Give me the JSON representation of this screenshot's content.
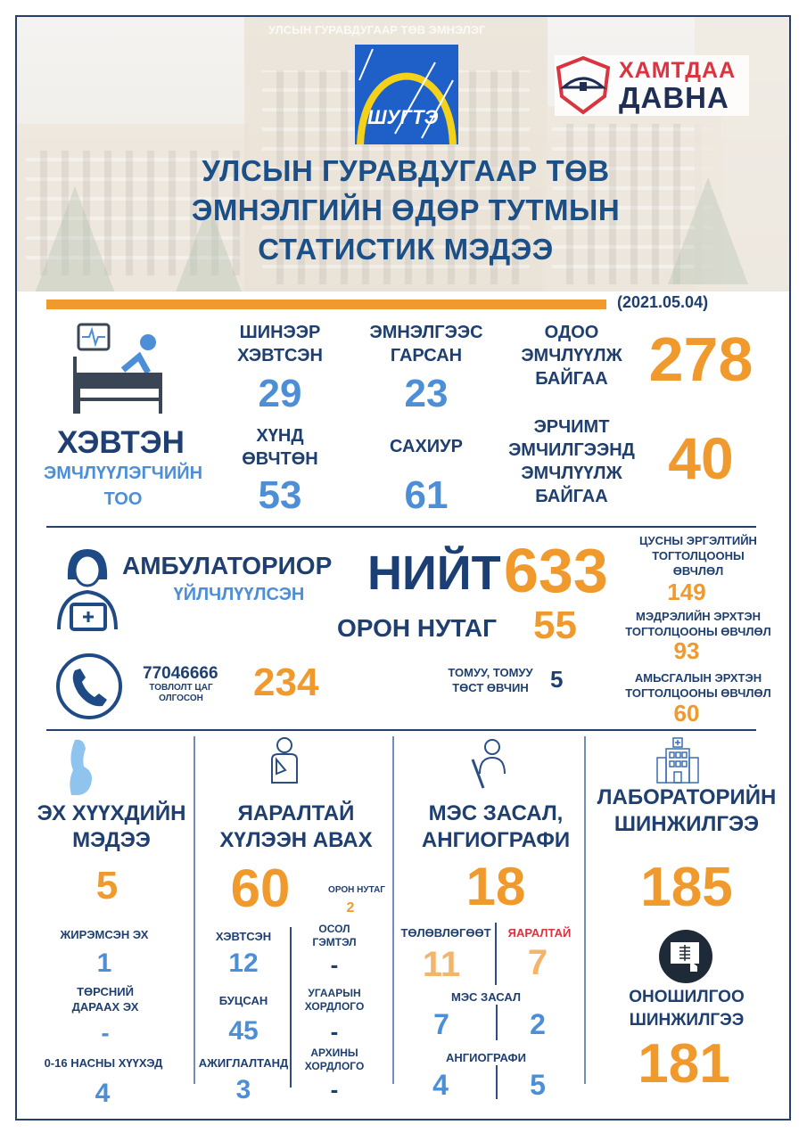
{
  "header": {
    "building_sign": "УЛСЫН ГУРАВДУГААР ТӨВ ЭМНЭЛЭГ",
    "logo_text": "ШУГТЭ",
    "campaign_logo": [
      "ХАМТДАА",
      "ДАВНА"
    ],
    "title_lines": [
      "УЛСЫН ГУРАВДУГААР ТӨВ",
      "ЭМНЭЛГИЙН ӨДӨР ТУТМЫН",
      "СТАТИСТИК МЭДЭЭ"
    ],
    "date": "(2021.05.04)"
  },
  "colors": {
    "navy": "#1e3f6f",
    "blue": "#4d8fd6",
    "orange": "#f09a2e",
    "red": "#d9343f"
  },
  "inpatient": {
    "title": "ХЭВТЭН",
    "subtitle_lines": [
      "ЭМЧЛҮҮЛЭГЧИЙН",
      "ТОО"
    ],
    "stats": [
      {
        "label_lines": [
          "ШИНЭЭР",
          "ХЭВТСЭН"
        ],
        "value": "29"
      },
      {
        "label_lines": [
          "ЭМНЭЛГЭЭС",
          "ГАРСАН"
        ],
        "value": "23"
      },
      {
        "label_lines": [
          "ОДОО",
          "ЭМЧЛҮҮЛЖ",
          "БАЙГАА"
        ],
        "value": "278"
      },
      {
        "label_lines": [
          "ХҮНД",
          "ӨВЧТӨН"
        ],
        "value": "53"
      },
      {
        "label_lines": [
          "САХИУР"
        ],
        "value": "61"
      },
      {
        "label_lines": [
          "ЭРЧИМТ",
          "ЭМЧИЛГЭЭНД",
          "ЭМЧЛҮҮЛЖ",
          "БАЙГАА"
        ],
        "value": "40"
      }
    ]
  },
  "outpatient": {
    "title": "АМБУЛАТОРИОР",
    "subtitle": "ҮЙЛЧЛҮҮЛСЭН",
    "total_label": "НИЙТ",
    "total": "633",
    "rural_label": "ОРОН НУТАГ",
    "rural": "55",
    "hotline": {
      "number": "77046666",
      "label_lines": [
        "ТОВЛОЛТ ЦАГ",
        "ОЛГОСОН"
      ],
      "value": "234"
    },
    "flu": {
      "label_lines": [
        "ТОМУУ, ТОМУУ",
        "ТӨСТ ӨВЧИН"
      ],
      "value": "5"
    },
    "diseases": [
      {
        "label_lines": [
          "ЦУСНЫ ЭРГЭЛТИЙН",
          "ТОГТОЛЦООНЫ",
          "ӨВЧЛӨЛ"
        ],
        "value": "149"
      },
      {
        "label_lines": [
          "МЭДРЭЛИЙН ЭРХТЭН",
          "ТОГТОЛЦООНЫ ӨВЧЛӨЛ"
        ],
        "value": "93"
      },
      {
        "label_lines": [
          "АМЬСГАЛЫН ЭРХТЭН",
          "ТОГТОЛЦООНЫ ӨВЧЛӨЛ"
        ],
        "value": "60"
      }
    ]
  },
  "maternal": {
    "title_lines": [
      "ЭХ ХҮҮХДИЙН",
      "МЭДЭЭ"
    ],
    "total": "5",
    "items": [
      {
        "label_lines": [
          "ЖИРЭМСЭН ЭХ"
        ],
        "value": "1"
      },
      {
        "label_lines": [
          "ТӨРСНИЙ",
          "ДАРААХ ЭХ"
        ],
        "value": "-"
      },
      {
        "label_lines": [
          "0-16 НАСНЫ ХҮҮХЭД"
        ],
        "value": "4"
      }
    ]
  },
  "emergency": {
    "title_lines": [
      "ЯАРАЛТАЙ",
      "ХҮЛЭЭН АВАХ"
    ],
    "total": "60",
    "rural_label": "ОРОН НУТАГ",
    "rural": "2",
    "left": [
      {
        "label": "ХЭВТСЭН",
        "value": "12"
      },
      {
        "label": "БУЦСАН",
        "value": "45"
      },
      {
        "label": "АЖИГЛАЛТАНД",
        "value": "3"
      }
    ],
    "right": [
      {
        "label_lines": [
          "ОСОЛ",
          "ГЭМТЭЛ"
        ],
        "value": "-"
      },
      {
        "label_lines": [
          "УГААРЫН",
          "ХОРДЛОГО"
        ],
        "value": "-"
      },
      {
        "label_lines": [
          "АРХИНЫ",
          "ХОРДЛОГО"
        ],
        "value": "-"
      }
    ]
  },
  "surgery": {
    "title_lines": [
      "МЭС ЗАСАЛ,",
      "АНГИОГРАФИ"
    ],
    "total": "18",
    "planned_label": "ТӨЛӨВЛӨГӨӨТ",
    "planned": "11",
    "urgent_label": "ЯАРАЛТАЙ",
    "urgent": "7",
    "surgery_label": "МЭС ЗАСАЛ",
    "surgery_planned": "7",
    "surgery_urgent": "2",
    "angio_label": "АНГИОГРАФИ",
    "angio_planned": "4",
    "angio_urgent": "5"
  },
  "lab": {
    "title_lines": [
      "ЛАБОРАТОРИЙН",
      "ШИНЖИЛГЭЭ"
    ],
    "total": "185",
    "diag_title_lines": [
      "ОНОШИЛГОО",
      "ШИНЖИЛГЭЭ"
    ],
    "diag_total": "181"
  }
}
